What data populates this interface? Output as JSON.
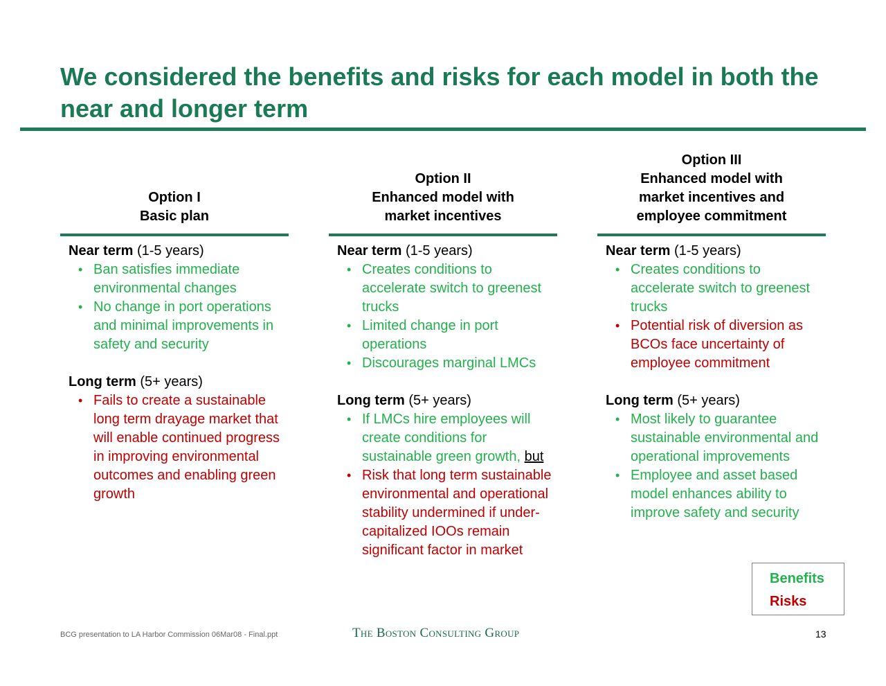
{
  "title": "We considered the benefits and risks for each model in both the near and longer term",
  "columns": [
    {
      "heading_lines": [
        "Option I",
        "Basic plan"
      ],
      "near": {
        "label": "Near term",
        "range": " (1-5 years)",
        "items": [
          {
            "type": "benefit",
            "text": "Ban satisfies immediate environmental changes"
          },
          {
            "type": "benefit",
            "text": "No change in port operations and minimal improvements in safety and security"
          }
        ]
      },
      "long": {
        "label": "Long term",
        "range": " (5+ years)",
        "items": [
          {
            "type": "risk",
            "text": "Fails to create a sustainable long term drayage market that will enable continued progress in improving environmental outcomes and enabling green growth"
          }
        ]
      }
    },
    {
      "heading_lines": [
        "Option II",
        "Enhanced model with",
        "market incentives"
      ],
      "near": {
        "label": "Near term",
        "range": " (1-5 years)",
        "items": [
          {
            "type": "benefit",
            "text": "Creates conditions to accelerate switch to greenest trucks"
          },
          {
            "type": "benefit",
            "text": "Limited change in port operations"
          },
          {
            "type": "benefit",
            "text": "Discourages marginal LMCs"
          }
        ]
      },
      "long": {
        "label": "Long term",
        "range": " (5+ years)",
        "items": [
          {
            "type": "benefit",
            "text": "If LMCs hire employees will create conditions for sustainable green growth, ",
            "suffix": "but"
          },
          {
            "type": "risk",
            "text": "Risk that long term sustainable environmental and operational stability undermined if under-capitalized IOOs remain significant factor in market"
          }
        ]
      }
    },
    {
      "heading_lines": [
        "Option III",
        "Enhanced model with",
        "market incentives and",
        "employee commitment"
      ],
      "near": {
        "label": "Near term",
        "range": " (1-5 years)",
        "items": [
          {
            "type": "benefit",
            "text": "Creates conditions to accelerate switch to greenest trucks"
          },
          {
            "type": "risk",
            "text": "Potential risk of diversion as BCOs face uncertainty of employee commitment"
          }
        ]
      },
      "long": {
        "label": "Long term",
        "range": " (5+ years)",
        "items": [
          {
            "type": "benefit",
            "text": "Most likely to guarantee sustainable environmental and operational improvements"
          },
          {
            "type": "benefit",
            "text": "Employee and asset based model enhances ability to improve safety and security"
          }
        ]
      }
    }
  ],
  "legend": {
    "benefits": "Benefits",
    "risks": "Risks"
  },
  "footer": {
    "source": "BCG presentation to LA Harbor Commission 06Mar08 - Final.ppt",
    "logo": "The Boston Consulting Group",
    "page_number": "13"
  },
  "colors": {
    "title": "#1a7a55",
    "rule": "#1f7a57",
    "benefit": "#22b14c",
    "risk": "#c00000"
  }
}
